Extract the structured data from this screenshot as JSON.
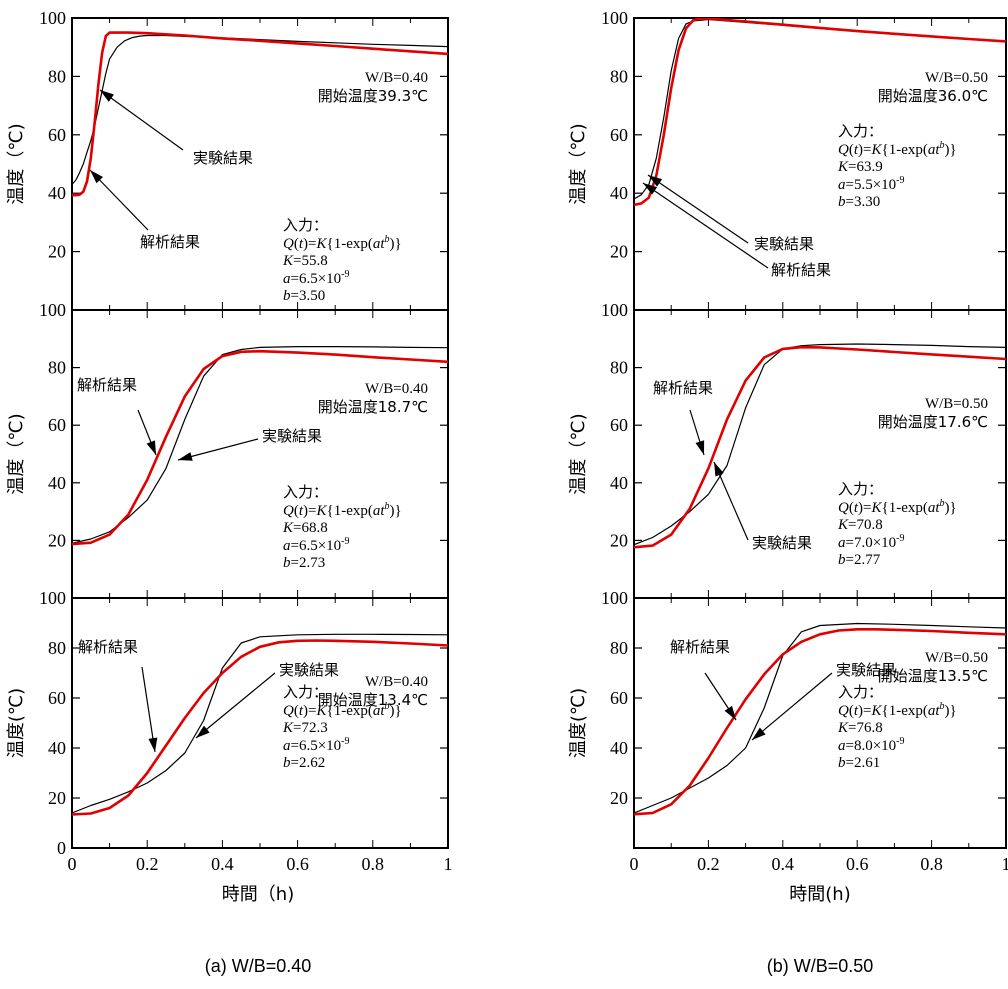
{
  "colors": {
    "experiment": "#000000",
    "analysis": "#e00000",
    "frame": "#000000"
  },
  "captions": [
    "(a) W/B=0.40",
    "(b) W/B=0.50"
  ],
  "xlabels": [
    "時間（h)",
    "時間(h)"
  ],
  "chart_data": [
    {
      "type": "line",
      "column": "a",
      "row": 1,
      "xlim": [
        0,
        1
      ],
      "ylim": [
        0,
        100
      ],
      "yticks": [
        "20",
        "40",
        "60",
        "80",
        "100"
      ],
      "ylabel": "温度（℃)",
      "condition": [
        "W/B=0.40",
        "開始温度39.3℃"
      ],
      "formula": {
        "heading": "入力：",
        "Q_expr": "Q(t)=K{1-exp(at^b)}",
        "K": "K=55.8",
        "a": "a=6.5×10^-9",
        "b": "b=3.50"
      },
      "labels": {
        "experiment": "実験結果",
        "analysis": "解析結果"
      },
      "series": [
        {
          "name": "実験結果",
          "x": [
            0,
            0.01,
            0.02,
            0.03,
            0.04,
            0.05,
            0.06,
            0.07,
            0.08,
            0.09,
            0.1,
            0.12,
            0.14,
            0.16,
            0.18,
            0.2,
            0.25,
            0.3,
            0.4,
            0.5,
            0.6,
            0.7,
            0.8,
            0.9,
            1.0
          ],
          "y": [
            43,
            44.5,
            47,
            50,
            54,
            58,
            63,
            69,
            75,
            81,
            86,
            90,
            92.2,
            93.3,
            93.8,
            94,
            94,
            93.7,
            93.2,
            92.6,
            92,
            91.5,
            91,
            90.6,
            90.2
          ]
        },
        {
          "name": "解析結果",
          "x": [
            0,
            0.01,
            0.02,
            0.03,
            0.04,
            0.05,
            0.06,
            0.07,
            0.08,
            0.09,
            0.1,
            0.15,
            0.2,
            0.3,
            0.4,
            0.5,
            0.6,
            0.7,
            0.8,
            0.9,
            1.0
          ],
          "y": [
            39.3,
            39.3,
            39.5,
            40.5,
            44,
            52,
            64,
            77,
            88,
            93.8,
            95,
            95,
            94.8,
            94,
            93,
            92.2,
            91.3,
            90.4,
            89.5,
            88.6,
            87.7
          ]
        }
      ]
    },
    {
      "type": "line",
      "column": "a",
      "row": 2,
      "xlim": [
        0,
        1
      ],
      "ylim": [
        0,
        100
      ],
      "yticks": [
        "20",
        "40",
        "60",
        "80",
        "100"
      ],
      "ylabel": "温度（℃)",
      "condition": [
        "W/B=0.40",
        "開始温度18.7℃"
      ],
      "formula": {
        "heading": "入力：",
        "Q_expr": "Q(t)=K{1-exp(at^b)}",
        "K": "K=68.8",
        "a": "a=6.5×10^-9",
        "b": "b=2.73"
      },
      "labels": {
        "experiment": "実験結果",
        "analysis": "解析結果"
      },
      "series": [
        {
          "name": "実験結果",
          "x": [
            0,
            0.05,
            0.1,
            0.15,
            0.2,
            0.25,
            0.3,
            0.35,
            0.4,
            0.45,
            0.5,
            0.6,
            0.7,
            0.8,
            0.9,
            1.0
          ],
          "y": [
            19,
            20.5,
            23,
            28,
            34,
            45,
            62,
            77,
            84.5,
            86.3,
            87,
            87.3,
            87.3,
            87.2,
            87,
            86.9
          ]
        },
        {
          "name": "解析結果",
          "x": [
            0,
            0.05,
            0.1,
            0.15,
            0.2,
            0.25,
            0.3,
            0.35,
            0.4,
            0.45,
            0.5,
            0.6,
            0.7,
            0.8,
            0.9,
            1.0
          ],
          "y": [
            18.7,
            19.2,
            22,
            29,
            41,
            56,
            70,
            79.5,
            84,
            85.5,
            85.7,
            85.2,
            84.5,
            83.6,
            82.8,
            82
          ]
        }
      ]
    },
    {
      "type": "line",
      "column": "a",
      "row": 3,
      "xlim": [
        0,
        1
      ],
      "ylim": [
        0,
        100
      ],
      "yticks": [
        "0",
        "20",
        "40",
        "60",
        "80",
        "100"
      ],
      "xticks": [
        "0",
        "0.2",
        "0.4",
        "0.6",
        "0.8",
        "1"
      ],
      "ylabel": "温度(℃)",
      "condition": [
        "W/B=0.40",
        "開始温度13.4℃"
      ],
      "formula": {
        "heading": "入力：",
        "Q_expr": "Q(t)=K{1-exp(at^b)}",
        "K": "K=72.3",
        "a": "a=6.5×10^-9",
        "b": "b=2.62"
      },
      "labels": {
        "experiment": "実験結果",
        "analysis": "解析結果"
      },
      "series": [
        {
          "name": "実験結果",
          "x": [
            0,
            0.05,
            0.1,
            0.15,
            0.2,
            0.25,
            0.3,
            0.35,
            0.4,
            0.45,
            0.5,
            0.6,
            0.7,
            0.8,
            0.9,
            1.0
          ],
          "y": [
            14,
            17,
            19.5,
            22.5,
            26,
            31,
            38,
            51,
            72,
            82,
            84.5,
            85.3,
            85.5,
            85.5,
            85.4,
            85.3
          ]
        },
        {
          "name": "解析結果",
          "x": [
            0,
            0.05,
            0.1,
            0.15,
            0.2,
            0.25,
            0.3,
            0.35,
            0.4,
            0.45,
            0.5,
            0.55,
            0.6,
            0.65,
            0.7,
            0.8,
            0.9,
            1.0
          ],
          "y": [
            13.4,
            13.8,
            16,
            21,
            30,
            41,
            52,
            62,
            70,
            76.5,
            80.5,
            82.3,
            82.9,
            83,
            82.9,
            82.5,
            81.8,
            81
          ]
        }
      ]
    },
    {
      "type": "line",
      "column": "b",
      "row": 1,
      "xlim": [
        0,
        1
      ],
      "ylim": [
        0,
        100
      ],
      "yticks": [
        "20",
        "40",
        "60",
        "80",
        "100"
      ],
      "ylabel": "温度（℃)",
      "condition": [
        "W/B=0.50",
        "開始温度36.0℃"
      ],
      "formula": {
        "heading": "入力：",
        "Q_expr": "Q(t)=K{1-exp(at^b)}",
        "K": "K=63.9",
        "a": "a=5.5×10^-9",
        "b": "b=3.30"
      },
      "labels": {
        "experiment": "実験結果",
        "analysis": "解析結果"
      },
      "series": [
        {
          "name": "実験結果",
          "x": [
            0,
            0.02,
            0.04,
            0.06,
            0.08,
            0.1,
            0.12,
            0.14,
            0.16,
            0.2,
            0.3,
            0.4,
            0.5,
            0.6,
            0.7,
            0.8,
            0.9,
            1.0
          ],
          "y": [
            38,
            39.5,
            43,
            52,
            66,
            82,
            93,
            98,
            99,
            99.5,
            98.5,
            97.5,
            96.4,
            95.4,
            94.5,
            93.6,
            92.8,
            92
          ]
        },
        {
          "name": "解析結果",
          "x": [
            0,
            0.02,
            0.04,
            0.06,
            0.08,
            0.1,
            0.12,
            0.14,
            0.16,
            0.18,
            0.2,
            0.3,
            0.4,
            0.5,
            0.6,
            0.7,
            0.8,
            0.9,
            1.0
          ],
          "y": [
            36,
            36.5,
            38.5,
            46,
            60,
            76,
            89,
            96.5,
            99.3,
            99.8,
            99.8,
            98.8,
            97.7,
            96.6,
            95.5,
            94.6,
            93.7,
            92.8,
            92
          ]
        }
      ]
    },
    {
      "type": "line",
      "column": "b",
      "row": 2,
      "xlim": [
        0,
        1
      ],
      "ylim": [
        0,
        100
      ],
      "yticks": [
        "20",
        "40",
        "60",
        "80",
        "100"
      ],
      "ylabel": "温度（℃)",
      "condition": [
        "W/B=0.50",
        "開始温度17.6℃"
      ],
      "formula": {
        "heading": "入力：",
        "Q_expr": "Q(t)=K{1-exp(at^b)}",
        "K": "K=70.8",
        "a": "a=7.0×10^-9",
        "b": "b=2.77"
      },
      "labels": {
        "experiment": "実験結果",
        "analysis": "解析結果"
      },
      "series": [
        {
          "name": "実験結果",
          "x": [
            0,
            0.05,
            0.1,
            0.15,
            0.2,
            0.25,
            0.3,
            0.35,
            0.4,
            0.45,
            0.5,
            0.6,
            0.7,
            0.8,
            0.9,
            1.0
          ],
          "y": [
            18.5,
            21,
            25,
            30,
            36,
            46,
            66,
            81,
            86.5,
            87.6,
            88,
            88.2,
            88,
            87.7,
            87.3,
            87
          ]
        },
        {
          "name": "解析結果",
          "x": [
            0,
            0.05,
            0.1,
            0.15,
            0.2,
            0.25,
            0.3,
            0.35,
            0.4,
            0.45,
            0.5,
            0.6,
            0.7,
            0.8,
            0.9,
            1.0
          ],
          "y": [
            17.6,
            18.2,
            22,
            31,
            45,
            62,
            75.5,
            83.5,
            86.5,
            87.1,
            87,
            86.3,
            85.4,
            84.6,
            83.8,
            83
          ]
        }
      ]
    },
    {
      "type": "line",
      "column": "b",
      "row": 3,
      "xlim": [
        0,
        1
      ],
      "ylim": [
        0,
        100
      ],
      "yticks": [
        "20",
        "40",
        "60",
        "80",
        "100"
      ],
      "xticks": [
        "0",
        "0.2",
        "0.4",
        "0.6",
        "0.8",
        "1"
      ],
      "ylabel": "温度(℃)",
      "condition": [
        "W/B=0.50",
        "開始温度13.5℃"
      ],
      "formula": {
        "heading": "入力：",
        "Q_expr": "Q(t)=K{1-exp(at^b)}",
        "K": "K=76.8",
        "a": "a=8.0×10^-9",
        "b": "b=2.61"
      },
      "labels": {
        "experiment": "実験結果",
        "analysis": "解析結果"
      },
      "series": [
        {
          "name": "実験結果",
          "x": [
            0,
            0.05,
            0.1,
            0.15,
            0.2,
            0.25,
            0.3,
            0.35,
            0.4,
            0.45,
            0.5,
            0.6,
            0.7,
            0.8,
            0.9,
            1.0
          ],
          "y": [
            14,
            17,
            20,
            24,
            28,
            33,
            40,
            56,
            77,
            86.5,
            89,
            89.8,
            89.5,
            89,
            88.5,
            88
          ]
        },
        {
          "name": "解析結果",
          "x": [
            0,
            0.05,
            0.1,
            0.15,
            0.2,
            0.25,
            0.3,
            0.35,
            0.4,
            0.45,
            0.5,
            0.55,
            0.6,
            0.65,
            0.7,
            0.8,
            0.9,
            1.0
          ],
          "y": [
            13.5,
            14,
            17.5,
            25,
            36,
            48,
            59.5,
            69.5,
            77.5,
            82.5,
            85.5,
            87,
            87.5,
            87.5,
            87.3,
            86.8,
            86.1,
            85.5
          ]
        }
      ]
    }
  ]
}
